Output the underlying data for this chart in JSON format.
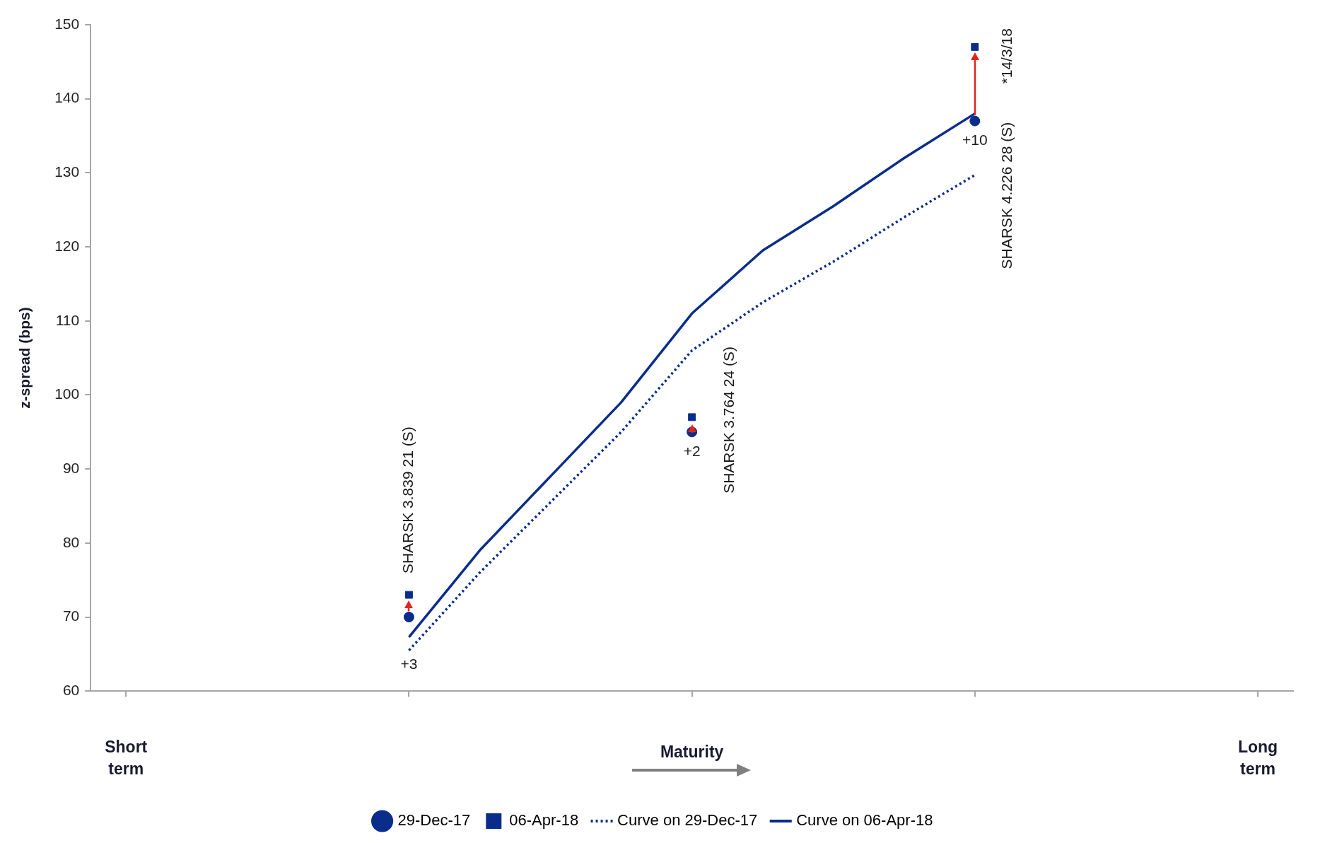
{
  "chart_data": {
    "type": "scatter",
    "xlabel": "Maturity",
    "ylabel": "z-spread (bps)",
    "categories": [
      null,
      null,
      null,
      null,
      null,
      null,
      null,
      null,
      null,
      null,
      null,
      null,
      null,
      null,
      null,
      null,
      null
    ],
    "ylim": [
      60,
      150
    ],
    "yticks": [
      60,
      70,
      80,
      90,
      100,
      110,
      120,
      130,
      140,
      150
    ],
    "grid": false,
    "legend": "bottom",
    "series": [
      {
        "name": "29-Dec-17",
        "marker": "circle",
        "color": "#0a2d8c",
        "values": [
          null,
          null,
          null,
          null,
          70,
          null,
          null,
          null,
          95,
          null,
          null,
          null,
          137,
          null,
          null,
          null,
          null
        ]
      },
      {
        "name": "06-Apr-18",
        "marker": "square",
        "color": "#0a2d8c",
        "values": [
          null,
          null,
          null,
          null,
          73,
          null,
          null,
          null,
          97,
          null,
          null,
          null,
          147,
          null,
          null,
          null,
          null
        ]
      },
      {
        "name": "Curve on 29-Dec-17",
        "type": "line",
        "marker": "none",
        "line_style": "dotted",
        "color": "#0a2d8c",
        "values": [
          null,
          null,
          null,
          null,
          65.5,
          76,
          85.5,
          95,
          106,
          112.5,
          118,
          124,
          129.7,
          null,
          null,
          null,
          null
        ]
      },
      {
        "name": "Curve on 06-Apr-18",
        "type": "line",
        "marker": "none",
        "line_style": "solid",
        "color": "#0a2d8c",
        "values": [
          null,
          null,
          null,
          null,
          67.3,
          79,
          89,
          99,
          111,
          119.5,
          125.5,
          132,
          138,
          null,
          null,
          null,
          null
        ]
      }
    ],
    "annotations": [
      "+3",
      "+2",
      "+10",
      "SHARSK 3.839 21 (S)",
      "SHARSK 3.764 24 (S)",
      "SHARSK 4.226 28 (S)",
      "*14/3/18",
      "Short term",
      "Long term"
    ]
  }
}
